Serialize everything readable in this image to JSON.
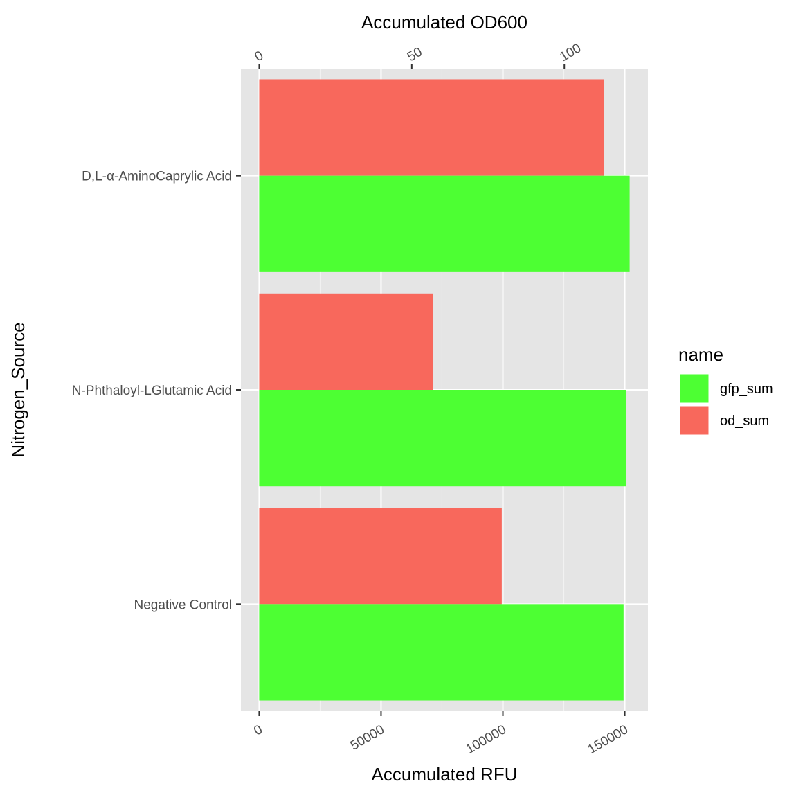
{
  "chart_data": {
    "type": "bar",
    "orientation": "horizontal",
    "categories": [
      "D,L-α-AminoCaprylic Acid",
      "N-Phthaloyl-LGlutamic Acid",
      "Negative Control"
    ],
    "series": [
      {
        "name": "gfp_sum",
        "axis": "bottom",
        "color": "#4dff33",
        "values": [
          152000,
          150500,
          149500
        ]
      },
      {
        "name": "od_sum",
        "axis": "top",
        "color": "#f8685c",
        "values": [
          113,
          57,
          79.5
        ]
      }
    ],
    "xlabel_bottom": "Accumulated RFU",
    "xlabel_top": "Accumulated OD600",
    "ylabel": "Nitrogen_Source",
    "bottom_axis": {
      "ticks": [
        0,
        50000,
        100000,
        150000
      ],
      "labels": [
        "0",
        "50000",
        "100000",
        "150000"
      ],
      "lim": [
        -7500,
        159500
      ]
    },
    "top_axis": {
      "ticks": [
        0,
        50,
        100
      ],
      "labels": [
        "0",
        "50",
        "100"
      ],
      "lim": [
        -6.0,
        127.4
      ]
    },
    "legend": {
      "title": "name",
      "position": "right",
      "entries": [
        "gfp_sum",
        "od_sum"
      ]
    },
    "grid": true,
    "background": "#e5e5e5"
  }
}
